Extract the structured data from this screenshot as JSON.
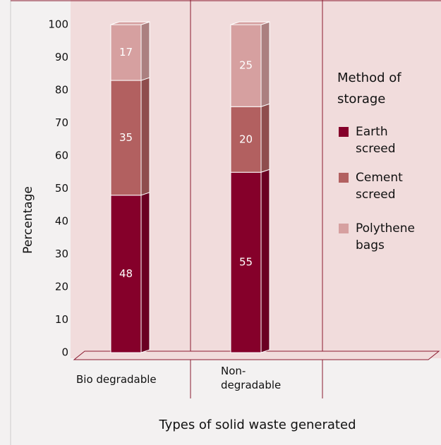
{
  "chart_data": {
    "type": "bar",
    "stacked": true,
    "y_label": "Percentage",
    "x_label": "Types of solid waste generated",
    "legend_title": "Method of storage",
    "categories": [
      "Bio degradable",
      "Non-degradable"
    ],
    "series": [
      {
        "name": "Earth screed",
        "color": "#85002a",
        "values": [
          48,
          55
        ]
      },
      {
        "name": "Cement screed",
        "color": "#b26060",
        "values": [
          35,
          20
        ]
      },
      {
        "name": "Polythene bags",
        "color": "#d6a0a0",
        "values": [
          17,
          25
        ]
      }
    ],
    "ylim": [
      0,
      100
    ],
    "yticks": [
      0,
      10,
      20,
      30,
      40,
      50,
      60,
      70,
      80,
      90,
      100
    ]
  }
}
